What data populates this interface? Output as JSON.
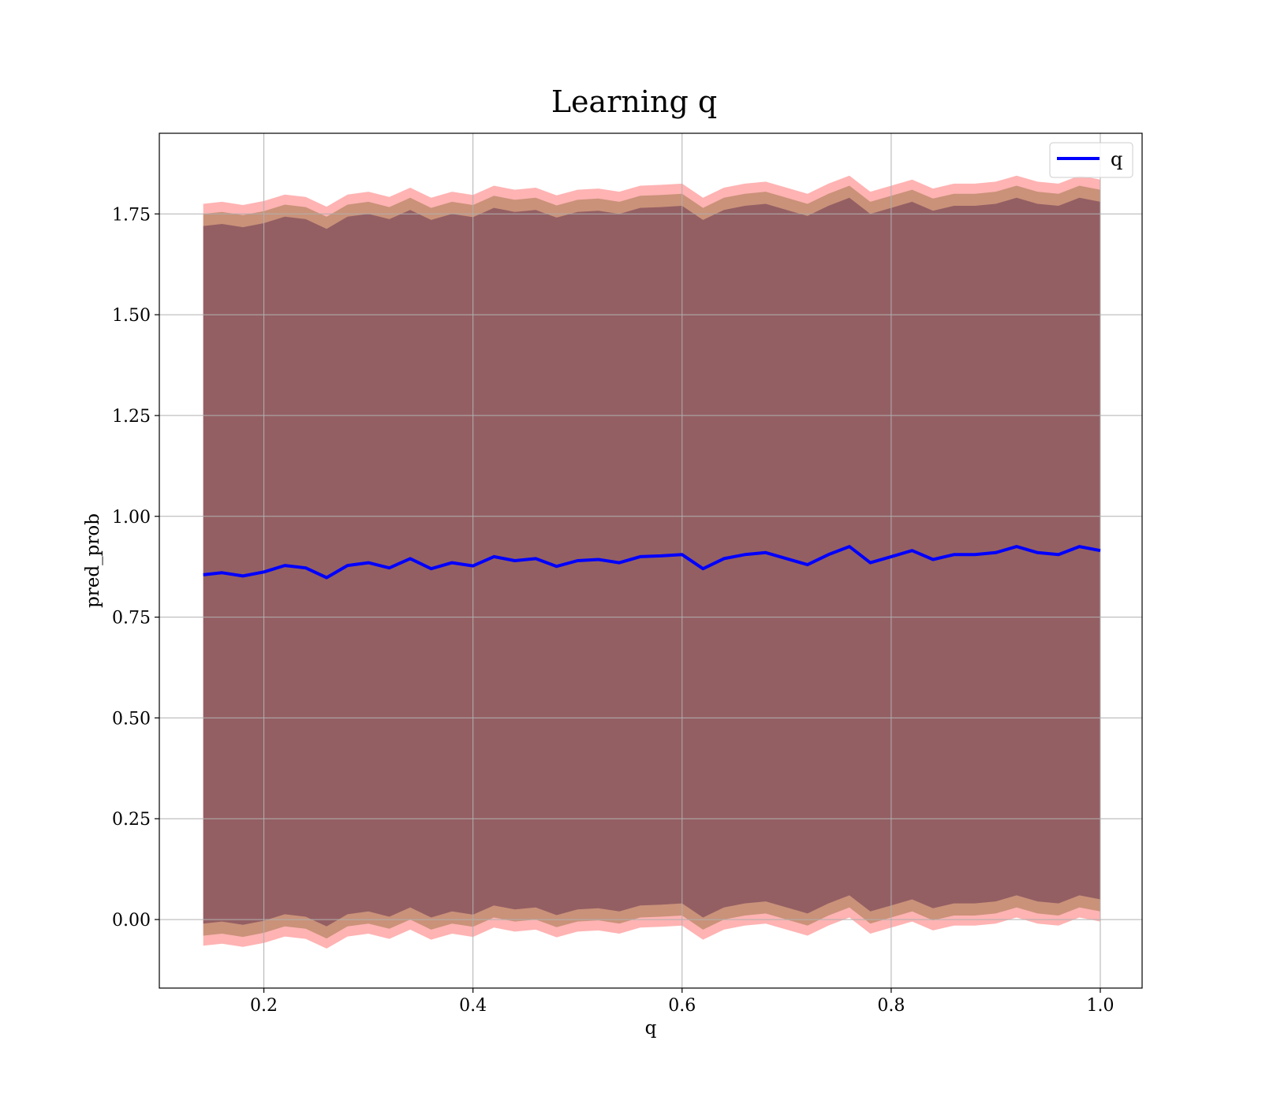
{
  "chart_data": {
    "type": "line",
    "title": "Learning q",
    "xlabel": "q",
    "ylabel": "pred_prob",
    "xlim": [
      0.1,
      1.04
    ],
    "ylim": [
      -0.17,
      1.95
    ],
    "x_ticks": [
      {
        "value": 0.2,
        "label": "0.2"
      },
      {
        "value": 0.4,
        "label": "0.4"
      },
      {
        "value": 0.6,
        "label": "0.6"
      },
      {
        "value": 0.8,
        "label": "0.8"
      },
      {
        "value": 1.0,
        "label": "1.0"
      }
    ],
    "y_ticks": [
      {
        "value": 0.0,
        "label": "0.00"
      },
      {
        "value": 0.25,
        "label": "0.25"
      },
      {
        "value": 0.5,
        "label": "0.50"
      },
      {
        "value": 0.75,
        "label": "0.75"
      },
      {
        "value": 1.0,
        "label": "1.00"
      },
      {
        "value": 1.25,
        "label": "1.25"
      },
      {
        "value": 1.5,
        "label": "1.50"
      },
      {
        "value": 1.75,
        "label": "1.75"
      }
    ],
    "grid": true,
    "legend_position": "top-right",
    "series": [
      {
        "name": "q",
        "color": "#0000ff",
        "x": [
          0.142,
          0.16,
          0.18,
          0.2,
          0.22,
          0.24,
          0.26,
          0.28,
          0.3,
          0.32,
          0.34,
          0.36,
          0.38,
          0.4,
          0.42,
          0.44,
          0.46,
          0.48,
          0.5,
          0.52,
          0.54,
          0.56,
          0.58,
          0.6,
          0.62,
          0.64,
          0.66,
          0.68,
          0.7,
          0.72,
          0.74,
          0.76,
          0.78,
          0.8,
          0.82,
          0.84,
          0.86,
          0.88,
          0.9,
          0.92,
          0.94,
          0.96,
          0.98,
          1.0
        ],
        "y": [
          0.855,
          0.86,
          0.852,
          0.862,
          0.878,
          0.872,
          0.848,
          0.878,
          0.885,
          0.872,
          0.895,
          0.87,
          0.885,
          0.877,
          0.9,
          0.89,
          0.895,
          0.876,
          0.89,
          0.893,
          0.885,
          0.9,
          0.902,
          0.905,
          0.87,
          0.895,
          0.905,
          0.91,
          0.895,
          0.88,
          0.905,
          0.925,
          0.885,
          0.9,
          0.915,
          0.893,
          0.905,
          0.905,
          0.91,
          0.925,
          0.91,
          0.905,
          0.925,
          0.915
        ]
      }
    ],
    "bands": [
      {
        "color": "#ff8080",
        "opacity": 0.6,
        "offset_upper": 0.92,
        "offset_lower": 0.92
      },
      {
        "color": "#a67c52",
        "opacity": 0.6,
        "offset_upper": 0.895,
        "offset_lower": 0.895
      },
      {
        "color": "#7d4a5a",
        "opacity": 0.7,
        "offset_upper": 0.865,
        "offset_lower": 0.865
      }
    ]
  }
}
